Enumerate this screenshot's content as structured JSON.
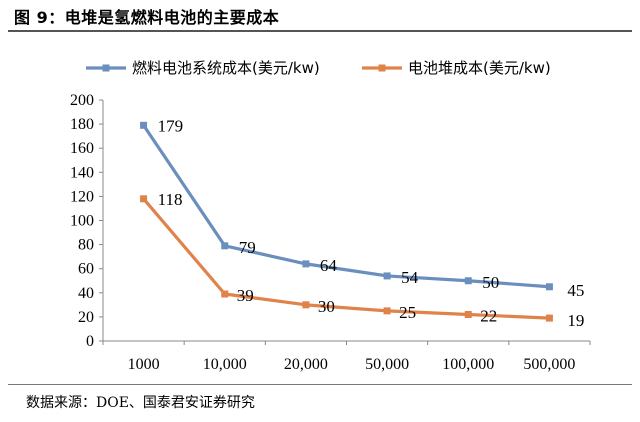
{
  "figure": {
    "title": "图 9：电堆是氢燃料电池的主要成本",
    "source": "数据来源：DOE、国泰君安证券研究"
  },
  "chart_data": {
    "type": "line",
    "categories": [
      "1000",
      "10,000",
      "20,000",
      "50,000",
      "100,000",
      "500,000"
    ],
    "series": [
      {
        "name": "燃料电池系统成本(美元/kw)",
        "values": [
          179,
          79,
          64,
          54,
          50,
          45
        ],
        "color": "#6a8fbf"
      },
      {
        "name": "电池堆成本(美元/kw)",
        "values": [
          118,
          39,
          30,
          25,
          22,
          19
        ],
        "color": "#e0834a"
      }
    ],
    "ylim": [
      0,
      200
    ],
    "yticks": [
      "0",
      "20",
      "40",
      "60",
      "80",
      "100",
      "120",
      "140",
      "160",
      "180",
      "200"
    ],
    "grid": false,
    "legend": "top"
  }
}
